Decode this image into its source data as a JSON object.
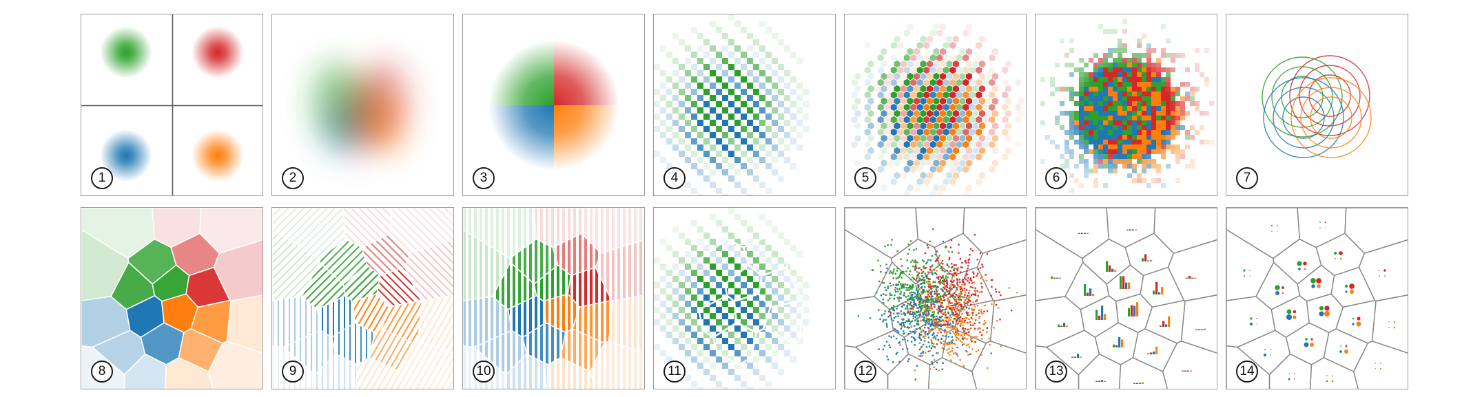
{
  "colors": {
    "green": "#2ca02c",
    "red": "#d62728",
    "blue": "#1f77b4",
    "orange": "#ff7f0e"
  },
  "panels": [
    {
      "label": "1",
      "technique": "four-separate-density-maps"
    },
    {
      "label": "2",
      "technique": "blended-density"
    },
    {
      "label": "3",
      "technique": "dominant-class-density"
    },
    {
      "label": "4",
      "technique": "diagonal-checker-weaving"
    },
    {
      "label": "5",
      "technique": "hexagon-weaving"
    },
    {
      "label": "6",
      "technique": "random-pixel-weaving"
    },
    {
      "label": "7",
      "technique": "contour-circles"
    },
    {
      "label": "8",
      "technique": "voronoi-dominant-color"
    },
    {
      "label": "9",
      "technique": "voronoi-hatching"
    },
    {
      "label": "10",
      "technique": "voronoi-stripes"
    },
    {
      "label": "11",
      "technique": "voronoi-weaving"
    },
    {
      "label": "12",
      "technique": "voronoi-dots"
    },
    {
      "label": "13",
      "technique": "voronoi-bar-glyphs"
    },
    {
      "label": "14",
      "technique": "voronoi-circle-glyphs"
    }
  ]
}
